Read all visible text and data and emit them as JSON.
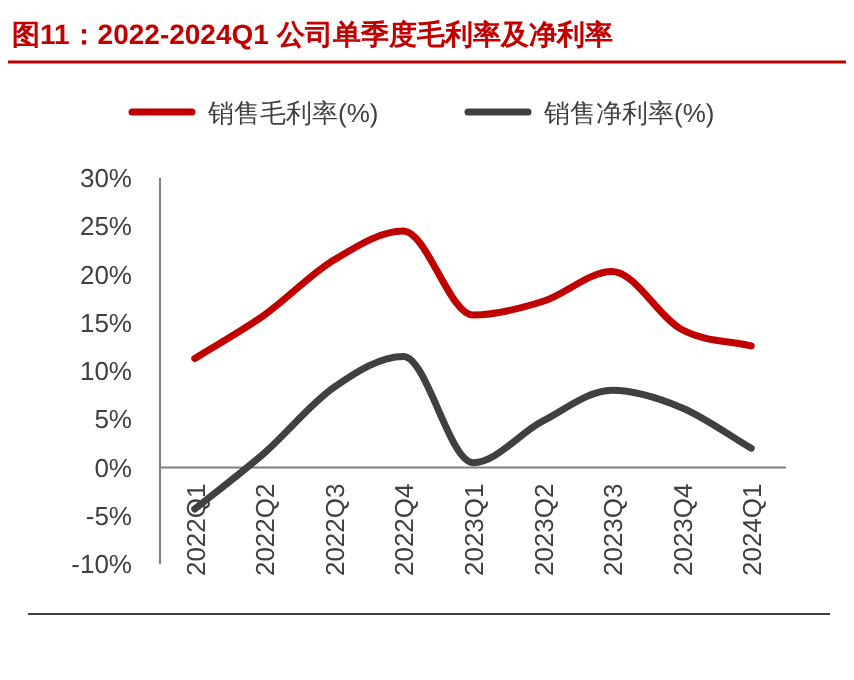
{
  "chart_data": {
    "type": "line",
    "title": "图11：2022-2024Q1 公司单季度毛利率及净利率",
    "categories": [
      "2022Q1",
      "2022Q2",
      "2022Q3",
      "2022Q4",
      "2023Q1",
      "2023Q2",
      "2023Q3",
      "2023Q4",
      "2024Q1"
    ],
    "series": [
      {
        "name": "销售毛利率(%)",
        "color": "#c00000",
        "values": [
          11.3,
          15.8,
          21.5,
          24.5,
          15.8,
          17.2,
          20.3,
          14.3,
          12.6
        ]
      },
      {
        "name": "销售净利率(%)",
        "color": "#404040",
        "values": [
          -4.3,
          1.5,
          8.3,
          11.5,
          0.5,
          4.8,
          8.0,
          6.2,
          2.0
        ]
      }
    ],
    "ylim": [
      -10,
      30
    ],
    "yticks": [
      {
        "value": -10,
        "label": "-10%"
      },
      {
        "value": -5,
        "label": "-5%"
      },
      {
        "value": 0,
        "label": "0%"
      },
      {
        "value": 5,
        "label": "5%"
      },
      {
        "value": 10,
        "label": "10%"
      },
      {
        "value": 15,
        "label": "15%"
      },
      {
        "value": 20,
        "label": "20%"
      },
      {
        "value": 25,
        "label": "25%"
      },
      {
        "value": 30,
        "label": "30%"
      }
    ],
    "legend": "top",
    "grid": false,
    "marker": "none",
    "line_style": "solid"
  }
}
